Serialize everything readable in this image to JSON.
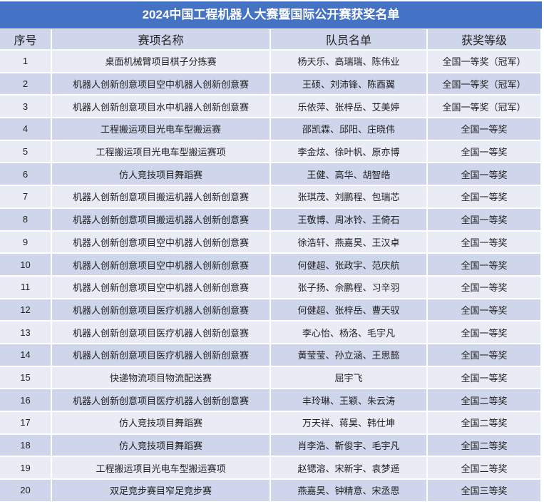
{
  "title": "2024中国工程机器人大赛暨国际公开赛获奖名单",
  "colors": {
    "title_bg": "#4472c4",
    "row_light": "#e9ebf5",
    "row_dark": "#cfd5ea"
  },
  "headers": [
    "序号",
    "赛项名称",
    "队员名单",
    "获奖等级"
  ],
  "rows": [
    [
      "1",
      "桌面机械臂项目棋子分拣赛",
      "杨天乐、高瑞瑞、陈伟业",
      "全国一等奖（冠军）"
    ],
    [
      "2",
      "机器人创新创意项目空中机器人创新创意赛",
      "王硕、刘沛锋、陈酉翼",
      "全国一等奖（冠军）"
    ],
    [
      "3",
      "机器人创新创意项目水中机器人创新创意赛",
      "乐依萍、张梓岳、艾美婷",
      "全国一等奖（冠军）"
    ],
    [
      "4",
      "工程搬运项目光电车型搬运赛",
      "邵凯霖、邱阳、庄晓伟",
      "全国一等奖"
    ],
    [
      "5",
      "工程搬运项目光电车型搬运赛项",
      "李金炫、徐叶帆、原亦博",
      "全国一等奖"
    ],
    [
      "6",
      "仿人竞技项目舞蹈赛",
      "王健、高华、胡智皓",
      "全国一等奖"
    ],
    [
      "7",
      "机器人创新创意项目搬运机器人创新创意赛",
      "张琪茂、刘鹏程、包瑞芯",
      "全国一等奖"
    ],
    [
      "8",
      "机器人创新创意项目搬运机器人创新创意赛",
      "王敬博、周冰铃、王倚石",
      "全国一等奖"
    ],
    [
      "9",
      "机器人创新创意项目空中机器人创新创意赛",
      "徐浩轩、燕嘉昊、王汉卓",
      "全国一等奖"
    ],
    [
      "10",
      "机器人创新创意项目空中机器人创新创意赛",
      "何健超、张政宇、范庆航",
      "全国一等奖"
    ],
    [
      "11",
      "机器人创新创意项目空中机器人创新创意赛",
      "张子扬、佘鹏程、习辛羽",
      "全国一等奖"
    ],
    [
      "12",
      "机器人创新创意项目医疗机器人创新创意赛",
      "何健超、张梓岳、曹天驭",
      "全国一等奖"
    ],
    [
      "13",
      "机器人创新创意项目医疗机器人创新创意赛",
      "李心怡、杨洛、毛宇凡",
      "全国一等奖"
    ],
    [
      "14",
      "机器人创新创意项目医疗机器人创新创意赛",
      "黄莹莹、孙立涵、王思懿",
      "全国一等奖"
    ],
    [
      "15",
      "快递物流项目物流配送赛",
      "屈宇飞",
      "全国一等奖"
    ],
    [
      "16",
      "机器人创新创意项目医疗机器人创新创意赛",
      "丰玲琳、王颖、朱云涛",
      "全国二等奖"
    ],
    [
      "17",
      "仿人竞技项目舞蹈赛",
      "万天祥、蒋昊、韩仕坤",
      "全国二等奖"
    ],
    [
      "18",
      "仿人竞技项目舞蹈赛",
      "肖李浩、靳俊宇、毛宇凡",
      "全国二等奖"
    ],
    [
      "19",
      "工程搬运项目光电车型搬运赛项",
      "赵锶溶、宋新宇、袁梦遥",
      "全国二等奖"
    ],
    [
      "20",
      "双足竞步赛目窄足竞步赛",
      "燕嘉昊、钟精意、宋丞恩",
      "全国三等奖"
    ]
  ]
}
